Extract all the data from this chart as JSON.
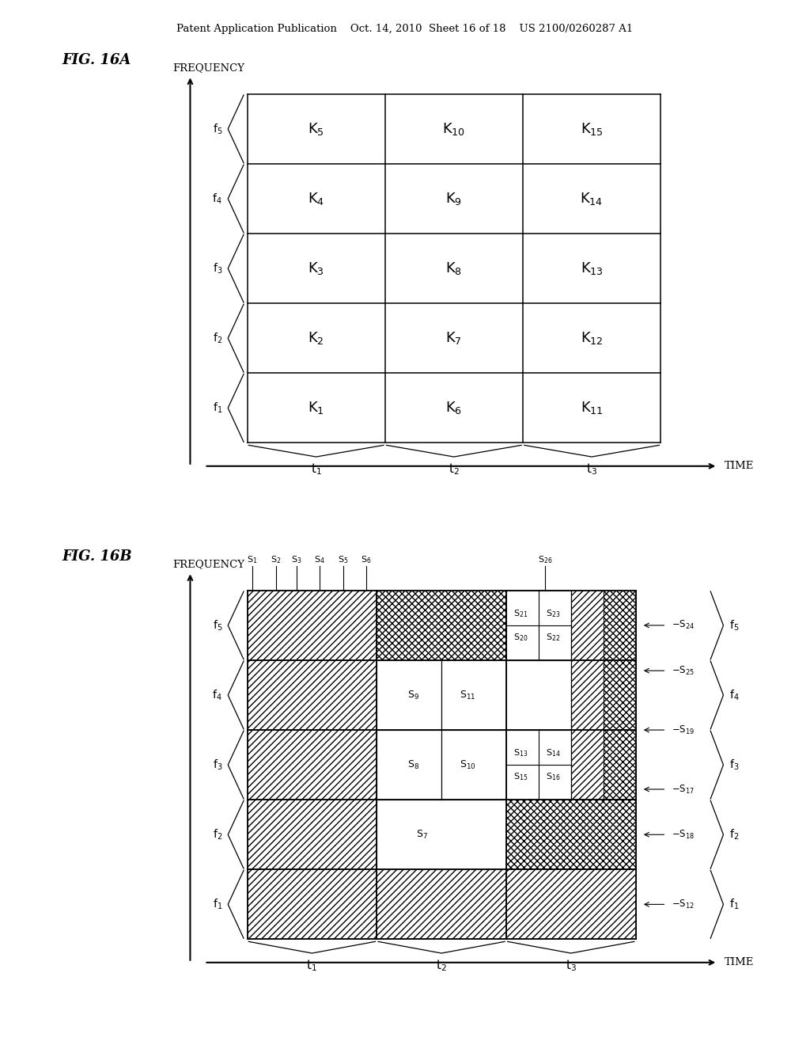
{
  "header_text": "Patent Application Publication    Oct. 14, 2010  Sheet 16 of 18    US 2100/0260287 A1",
  "fig16a_label": "FIG. 16A",
  "fig16b_label": "FIG. 16B",
  "freq_label": "FREQUENCY",
  "time_label": "TIME",
  "background_color": "#ffffff",
  "fig16a": {
    "grid_labels": [
      [
        "K5",
        "K10",
        "K15"
      ],
      [
        "K4",
        "K9",
        "K14"
      ],
      [
        "K3",
        "K8",
        "K13"
      ],
      [
        "K2",
        "K7",
        "K12"
      ],
      [
        "K1",
        "K6",
        "K11"
      ]
    ],
    "freq_labels": [
      "f5",
      "f4",
      "f3",
      "f2",
      "f1"
    ],
    "time_labels": [
      "t1",
      "t2",
      "t3"
    ]
  },
  "fig16b": {
    "freq_labels": [
      "f5",
      "f4",
      "f3",
      "f2",
      "f1"
    ],
    "time_labels": [
      "t1",
      "t2",
      "t3"
    ]
  }
}
